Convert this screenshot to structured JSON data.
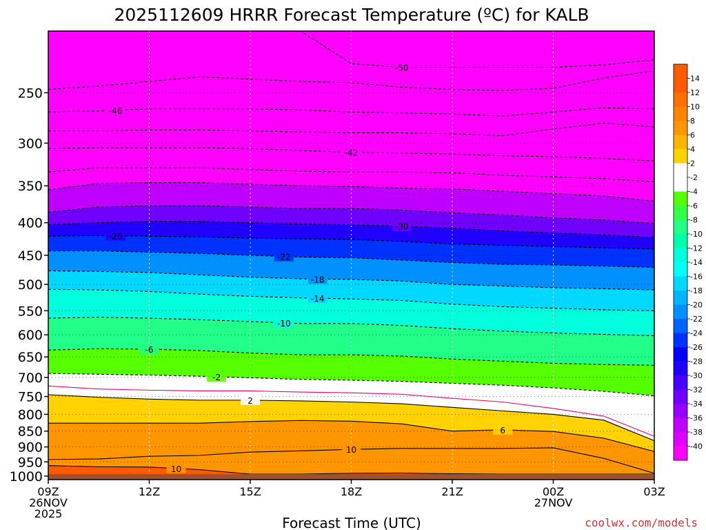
{
  "title": "2025112609 HRRR Forecast Temperature (ºC) for KALB",
  "xlabel": "Forecast Time (UTC)",
  "credit": "coolwx.com/models",
  "colors": {
    "background": "#ffffff",
    "ground": "#a0522d",
    "credit": "#cc3333",
    "freezing_line": "#e6006e",
    "contour": "#000000"
  },
  "chart_data": {
    "type": "heatmap",
    "title": "2025112609 HRRR Forecast Temperature (ºC) for KALB",
    "xlabel": "Forecast Time (UTC)",
    "ylabel": "",
    "x_ticks": [
      {
        "hour": 0,
        "lines": [
          "09Z",
          "26NOV",
          "2025"
        ]
      },
      {
        "hour": 3,
        "lines": [
          "12Z"
        ]
      },
      {
        "hour": 6,
        "lines": [
          "15Z"
        ]
      },
      {
        "hour": 9,
        "lines": [
          "18Z"
        ]
      },
      {
        "hour": 12,
        "lines": [
          "21Z"
        ]
      },
      {
        "hour": 15,
        "lines": [
          "00Z",
          "27NOV"
        ]
      },
      {
        "hour": 18,
        "lines": [
          "03Z"
        ]
      }
    ],
    "xlim": [
      0,
      18
    ],
    "y_ticks": [
      250,
      300,
      350,
      400,
      450,
      500,
      550,
      600,
      650,
      700,
      750,
      800,
      850,
      900,
      950,
      1000
    ],
    "ylim_hPa": [
      1013,
      200
    ],
    "y_scale": "log pressure",
    "grid": true,
    "surface_pressure_hPa": 993,
    "colorbar": {
      "labels": [
        "14",
        "12",
        "10",
        "8",
        "6",
        "4",
        "2",
        "-2",
        "-4",
        "-6",
        "-8",
        "-10",
        "-12",
        "-14",
        "-16",
        "-18",
        "-20",
        "-22",
        "-24",
        "-26",
        "-28",
        "-30",
        "-32",
        "-34",
        "-36",
        "-38",
        "-40"
      ],
      "colors": [
        "#ff5a00",
        "#ff6e00",
        "#ff8200",
        "#ff9600",
        "#ffb400",
        "#ffd200",
        "#ffff00",
        "#ffffff",
        "#55ff00",
        "#33ff44",
        "#22ff88",
        "#00ffaa",
        "#00ffdd",
        "#00ffff",
        "#00d8ff",
        "#00b4ff",
        "#0090ff",
        "#0064ff",
        "#0032ff",
        "#0000ff",
        "#2000ff",
        "#4800ff",
        "#7000ff",
        "#9800ff",
        "#bf00ff",
        "#e000ff",
        "#ff00ff"
      ]
    },
    "hours": [
      0,
      1.5,
      3,
      4.5,
      6,
      7.5,
      9,
      10.5,
      12,
      13.5,
      15,
      16.5,
      18
    ],
    "isotherms": [
      {
        "value": -50,
        "label": "-50",
        "p": [
          200,
          200,
          200,
          200,
          200,
          200,
          225,
          228,
          228,
          228,
          228,
          226,
          222
        ]
      },
      {
        "value": -48,
        "label": "",
        "p": [
          247,
          244,
          240,
          236,
          238,
          240,
          241,
          245,
          247,
          248,
          246,
          237,
          231
        ]
      },
      {
        "value": -46,
        "label": "-46",
        "p": [
          268,
          267,
          265,
          265,
          265,
          266,
          268,
          269,
          270,
          272,
          268,
          264,
          265
        ]
      },
      {
        "value": -44,
        "label": "",
        "p": [
          287,
          287,
          286,
          286,
          287,
          288,
          289,
          289,
          290,
          292,
          285,
          279,
          283
        ]
      },
      {
        "value": -42,
        "label": "-42",
        "p": [
          306,
          305,
          305,
          305,
          306,
          308,
          310,
          311,
          312,
          314,
          315,
          317,
          320
        ]
      },
      {
        "value": -40,
        "label": "",
        "p": [
          333,
          328,
          328,
          328,
          330,
          332,
          333,
          333,
          334,
          337,
          339,
          341,
          345
        ]
      },
      {
        "value": -38,
        "label": "",
        "p": [
          355,
          347,
          346,
          346,
          348,
          350,
          351,
          353,
          354,
          357,
          360,
          363,
          370
        ]
      },
      {
        "value": -34,
        "label": "",
        "p": [
          385,
          378,
          376,
          376,
          378,
          380,
          380,
          382,
          386,
          389,
          393,
          396,
          401
        ]
      },
      {
        "value": -30,
        "label": "-30",
        "p": [
          403,
          400,
          398,
          398,
          400,
          402,
          403,
          405,
          408,
          412,
          415,
          418,
          422
        ]
      },
      {
        "value": -26,
        "label": "-26",
        "p": [
          420,
          419,
          420,
          421,
          423,
          424,
          425,
          428,
          432,
          434,
          436,
          438,
          440
        ]
      },
      {
        "value": -22,
        "label": "-22",
        "p": [
          443,
          443,
          445,
          447,
          450,
          453,
          454,
          458,
          462,
          465,
          466,
          468,
          470
        ]
      },
      {
        "value": -18,
        "label": "-18",
        "p": [
          476,
          477,
          479,
          483,
          487,
          490,
          491,
          494,
          500,
          503,
          506,
          508,
          510
        ]
      },
      {
        "value": -14,
        "label": "-14",
        "p": [
          509,
          510,
          513,
          518,
          522,
          525,
          527,
          530,
          537,
          542,
          545,
          548,
          550
        ]
      },
      {
        "value": -10,
        "label": "-10",
        "p": [
          565,
          563,
          565,
          568,
          572,
          576,
          576,
          580,
          587,
          592,
          596,
          599,
          602
        ]
      },
      {
        "value": -6,
        "label": "-6",
        "p": [
          634,
          631,
          632,
          635,
          641,
          645,
          645,
          648,
          655,
          660,
          665,
          668,
          670
        ]
      },
      {
        "value": -2,
        "label": "-2",
        "p": [
          690,
          692,
          694,
          697,
          701,
          705,
          707,
          710,
          715,
          720,
          727,
          736,
          748
        ]
      },
      {
        "value": 0,
        "label": "",
        "p": [
          722,
          730,
          733,
          735,
          735,
          738,
          740,
          744,
          755,
          765,
          783,
          805,
          866
        ]
      },
      {
        "value": 2,
        "label": "2",
        "p": [
          745,
          752,
          757,
          760,
          760,
          762,
          765,
          770,
          780,
          790,
          800,
          817,
          880
        ]
      },
      {
        "value": 6,
        "label": "6",
        "p": [
          826,
          826,
          826,
          826,
          821,
          818,
          820,
          828,
          850,
          846,
          851,
          872,
          915
        ]
      },
      {
        "value": 10,
        "label": "10",
        "p": [
          942,
          940,
          931,
          928,
          917,
          913,
          908,
          905,
          905,
          905,
          903,
          938,
          990
        ]
      },
      {
        "value": 10,
        "label": "10",
        "p": [
          963,
          967,
          968,
          977,
          993,
          993,
          990,
          989,
          992,
          993,
          993,
          993,
          993
        ]
      }
    ]
  }
}
